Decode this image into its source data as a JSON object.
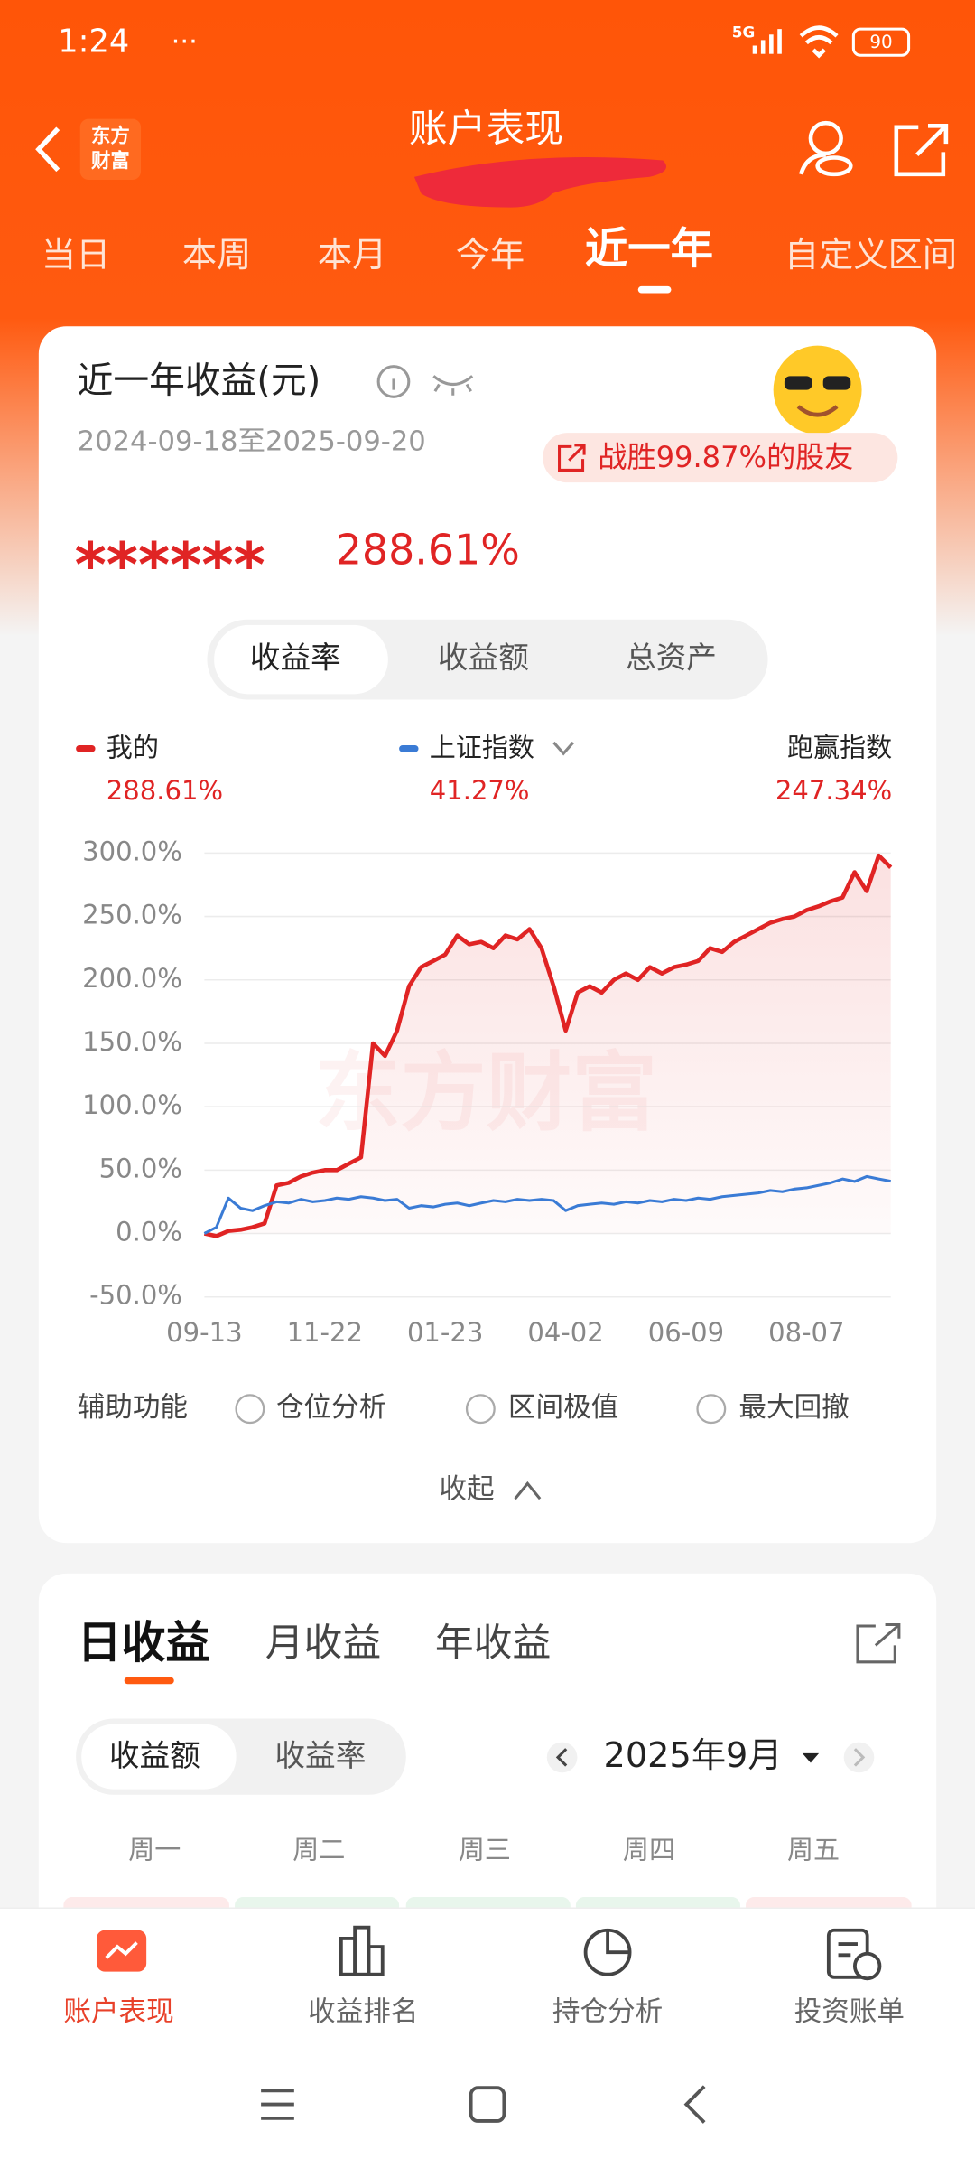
{
  "status_bar": {
    "time": "1:24",
    "network": "5G",
    "battery": "90"
  },
  "header": {
    "logo": [
      "东方",
      "财富"
    ],
    "title": "账户表现"
  },
  "tabs": [
    "当日",
    "本周",
    "本月",
    "今年",
    "近一年",
    "自定义区间"
  ],
  "card": {
    "title": "近一年收益(元)",
    "date_range": "2024-09-18至2025-09-20",
    "beat": "战胜99.87%的股友",
    "hidden_amount": "******",
    "return": "288.61%",
    "segments": [
      "收益率",
      "收益额",
      "总资产"
    ],
    "legend_values": [
      "288.61%",
      "41.27%"
    ],
    "outperform": {
      "label": "跑赢指数",
      "value": "247.34%"
    }
  },
  "chart_data": {
    "type": "line",
    "watermark": "东方财富",
    "categories": [
      "09-13",
      null,
      null,
      null,
      null,
      null,
      null,
      null,
      null,
      null,
      "11-22",
      null,
      null,
      null,
      null,
      null,
      null,
      null,
      null,
      null,
      "01-23",
      null,
      null,
      null,
      null,
      null,
      null,
      null,
      null,
      null,
      "04-02",
      null,
      null,
      null,
      null,
      null,
      null,
      null,
      null,
      null,
      "06-09",
      null,
      null,
      null,
      null,
      null,
      null,
      null,
      null,
      null,
      "08-07",
      null,
      null,
      null,
      null,
      null,
      null,
      null
    ],
    "series": [
      {
        "name": "我的",
        "color": "#e02424",
        "values": [
          0,
          -2,
          2,
          3,
          5,
          8,
          38,
          40,
          45,
          48,
          50,
          50,
          55,
          60,
          150,
          140,
          160,
          195,
          210,
          215,
          220,
          235,
          228,
          230,
          225,
          235,
          232,
          240,
          225,
          195,
          160,
          190,
          195,
          190,
          200,
          205,
          200,
          210,
          205,
          210,
          212,
          215,
          225,
          222,
          230,
          235,
          240,
          245,
          248,
          250,
          255,
          258,
          262,
          265,
          285,
          270,
          298,
          288.61
        ]
      },
      {
        "name": "上证指数",
        "color": "#3a7bd5",
        "values": [
          0,
          5,
          28,
          20,
          18,
          22,
          25,
          24,
          27,
          25,
          26,
          28,
          27,
          29,
          28,
          26,
          27,
          20,
          22,
          21,
          23,
          24,
          22,
          24,
          26,
          25,
          27,
          26,
          27,
          26,
          18,
          22,
          23,
          24,
          23,
          25,
          24,
          26,
          25,
          27,
          26,
          28,
          27,
          29,
          30,
          31,
          32,
          34,
          33,
          35,
          36,
          38,
          40,
          43,
          41,
          45,
          43,
          41.27
        ]
      }
    ],
    "ylim": [
      -50,
      300
    ],
    "yticks": [
      {
        "value": 300,
        "label": "300.0%"
      },
      {
        "value": 250,
        "label": "250.0%"
      },
      {
        "value": 200,
        "label": "200.0%"
      },
      {
        "value": 150,
        "label": "150.0%"
      },
      {
        "value": 100,
        "label": "100.0%"
      },
      {
        "value": 50,
        "label": "50.0%"
      },
      {
        "value": 0,
        "label": "0.0%"
      },
      {
        "value": -50,
        "label": "-50.0%"
      }
    ],
    "grid": true
  },
  "tools": {
    "label": "辅助功能",
    "options": [
      "仓位分析",
      "区间极值",
      "最大回撤"
    ],
    "collapse": "收起"
  },
  "daily": {
    "tabs": [
      "日收益",
      "月收益",
      "年收益"
    ],
    "segments": [
      "收益额",
      "收益率"
    ],
    "month": "2025年9月",
    "weekdays": [
      "周一",
      "周二",
      "周三",
      "周四",
      "周五"
    ]
  },
  "bottom_nav": [
    "账户表现",
    "收益排名",
    "持仓分析",
    "投资账单"
  ]
}
